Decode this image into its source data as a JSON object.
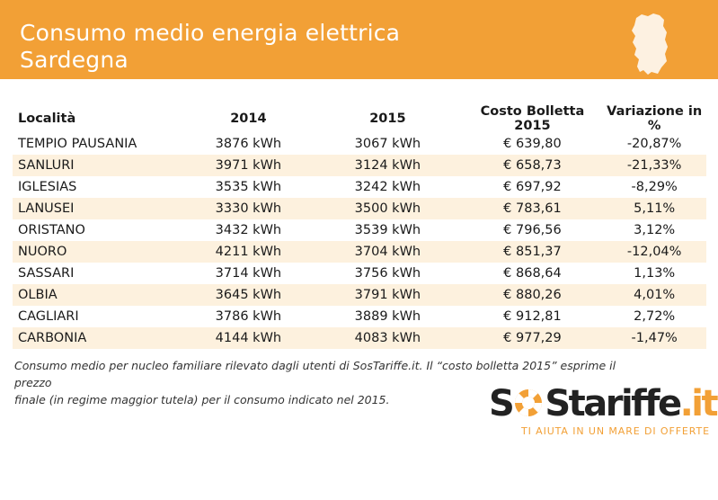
{
  "header": {
    "title_line1": "Consumo medio energia elettrica",
    "title_line2": "Sardegna"
  },
  "table": {
    "columns": [
      "Località",
      "2014",
      "2015",
      "Costo Bolletta 2015",
      "Variazione in %"
    ],
    "rows": [
      {
        "loc": "TEMPIO PAUSANIA",
        "y2014": "3876 kWh",
        "y2015": "3067 kWh",
        "cost": "€ 639,80",
        "var": "-20,87%"
      },
      {
        "loc": "SANLURI",
        "y2014": "3971 kWh",
        "y2015": "3124 kWh",
        "cost": "€ 658,73",
        "var": "-21,33%"
      },
      {
        "loc": "IGLESIAS",
        "y2014": "3535 kWh",
        "y2015": "3242 kWh",
        "cost": "€ 697,92",
        "var": "-8,29%"
      },
      {
        "loc": "LANUSEI",
        "y2014": "3330 kWh",
        "y2015": "3500 kWh",
        "cost": "€ 783,61",
        "var": "5,11%"
      },
      {
        "loc": "ORISTANO",
        "y2014": "3432 kWh",
        "y2015": "3539 kWh",
        "cost": "€ 796,56",
        "var": "3,12%"
      },
      {
        "loc": "NUORO",
        "y2014": "4211 kWh",
        "y2015": "3704 kWh",
        "cost": "€ 851,37",
        "var": "-12,04%"
      },
      {
        "loc": "SASSARI",
        "y2014": "3714 kWh",
        "y2015": "3756 kWh",
        "cost": "€ 868,64",
        "var": "1,13%"
      },
      {
        "loc": "OLBIA",
        "y2014": "3645 kWh",
        "y2015": "3791 kWh",
        "cost": "€ 880,26",
        "var": "4,01%"
      },
      {
        "loc": "CAGLIARI",
        "y2014": "3786 kWh",
        "y2015": "3889 kWh",
        "cost": "€ 912,81",
        "var": "2,72%"
      },
      {
        "loc": "CARBONIA",
        "y2014": "4144 kWh",
        "y2015": "4083 kWh",
        "cost": "€ 977,29",
        "var": "-1,47%"
      }
    ]
  },
  "note": {
    "line1": "Consumo medio per nucleo familiare rilevato dagli utenti di SosTariffe.it. Il “costo bolletta 2015” esprime il prezzo",
    "line2": "finale (in regime maggior tutela) per il consumo indicato nel 2015."
  },
  "logo": {
    "part1": "S",
    "part2": "S",
    "part3": "tariffe",
    "part4": ".it",
    "tagline": "TI AIUTA IN UN MARE DI OFFERTE"
  },
  "colors": {
    "brand": "#f2a036",
    "row_alt": "#fdf1de",
    "text": "#1a1a1a"
  }
}
